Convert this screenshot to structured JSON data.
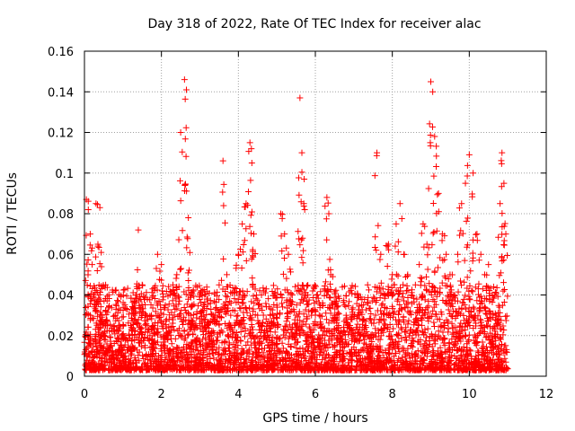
{
  "chart_data": {
    "type": "scatter",
    "title": "Day 318 of 2022, Rate Of TEC Index for receiver alac",
    "xlabel": "GPS time / hours",
    "ylabel": "ROTI / TECUs",
    "xlim": [
      0,
      12
    ],
    "ylim": [
      0,
      0.16
    ],
    "xticks": [
      0,
      2,
      4,
      6,
      8,
      10,
      12
    ],
    "yticks": [
      0,
      0.02,
      0.04,
      0.06,
      0.08,
      0.1,
      0.12,
      0.14,
      0.16
    ],
    "xtick_labels": [
      "0",
      "2",
      "4",
      "6",
      "8",
      "10",
      "12"
    ],
    "ytick_labels": [
      "0",
      "0.02",
      "0.04",
      "0.06",
      "0.08",
      "0.1",
      "0.12",
      "0.14",
      "0.16"
    ],
    "grid": true,
    "marker": "plus",
    "color": "#ff0000",
    "series": [
      {
        "x": [
          0.05,
          0.1,
          0.15,
          0.2,
          0.25,
          0.3,
          0.35,
          0.4,
          0.45,
          0.5,
          0.55,
          0.6,
          0.7,
          0.8,
          0.9,
          1.0,
          1.1,
          1.2,
          1.3,
          1.4,
          1.5,
          1.6,
          1.7,
          1.8,
          1.9,
          2.0,
          2.1,
          2.2,
          2.3,
          2.4,
          2.5,
          2.6,
          2.65,
          2.7,
          2.8,
          2.9,
          3.0,
          3.1,
          3.2,
          3.3,
          3.4,
          3.5,
          3.6,
          3.7,
          3.8,
          3.9,
          4.0,
          4.1,
          4.2,
          4.3,
          4.35,
          4.4,
          4.5,
          4.6,
          4.7,
          4.8,
          4.9,
          5.0,
          5.1,
          5.2,
          5.3,
          5.4,
          5.5,
          5.6,
          5.65,
          5.7,
          5.8,
          5.9,
          6.0,
          6.1,
          6.2,
          6.3,
          6.35,
          6.4,
          6.5,
          6.6,
          6.7,
          6.8,
          6.9,
          7.0,
          7.1,
          7.2,
          7.3,
          7.4,
          7.5,
          7.6,
          7.7,
          7.8,
          7.9,
          8.0,
          8.1,
          8.2,
          8.3,
          8.4,
          8.5,
          8.6,
          8.7,
          8.8,
          8.9,
          9.0,
          9.05,
          9.1,
          9.2,
          9.3,
          9.4,
          9.5,
          9.6,
          9.7,
          9.8,
          9.9,
          10.0,
          10.1,
          10.2,
          10.3,
          10.4,
          10.5,
          10.6,
          10.7,
          10.8,
          10.85,
          10.9,
          10.95
        ],
        "y": [
          0.087,
          0.082,
          0.07,
          0.055,
          0.04,
          0.085,
          0.065,
          0.083,
          0.03,
          0.02,
          0.045,
          0.025,
          0.015,
          0.03,
          0.012,
          0.02,
          0.018,
          0.025,
          0.03,
          0.072,
          0.045,
          0.03,
          0.02,
          0.025,
          0.06,
          0.055,
          0.035,
          0.028,
          0.045,
          0.05,
          0.12,
          0.146,
          0.141,
          0.078,
          0.035,
          0.025,
          0.04,
          0.03,
          0.025,
          0.02,
          0.03,
          0.045,
          0.106,
          0.05,
          0.03,
          0.025,
          0.06,
          0.075,
          0.085,
          0.115,
          0.105,
          0.07,
          0.03,
          0.025,
          0.02,
          0.025,
          0.03,
          0.035,
          0.08,
          0.07,
          0.06,
          0.04,
          0.03,
          0.137,
          0.11,
          0.085,
          0.04,
          0.03,
          0.025,
          0.03,
          0.035,
          0.088,
          0.08,
          0.05,
          0.03,
          0.025,
          0.02,
          0.03,
          0.025,
          0.02,
          0.03,
          0.035,
          0.025,
          0.015,
          0.003,
          0.11,
          0.06,
          0.04,
          0.065,
          0.05,
          0.075,
          0.085,
          0.06,
          0.05,
          0.04,
          0.045,
          0.055,
          0.075,
          0.065,
          0.145,
          0.14,
          0.118,
          0.09,
          0.07,
          0.06,
          0.05,
          0.04,
          0.06,
          0.085,
          0.095,
          0.109,
          0.1,
          0.07,
          0.06,
          0.05,
          0.055,
          0.04,
          0.03,
          0.085,
          0.11,
          0.095,
          0.07
        ]
      }
    ],
    "background_noise": {
      "x_range": [
        0.0,
        11.0
      ],
      "y_band": [
        0.003,
        0.045
      ],
      "point_count": 3500,
      "note": "dense low-level ROTI points (baseline ~0.005–0.04 TECUs) across the full time range"
    }
  }
}
